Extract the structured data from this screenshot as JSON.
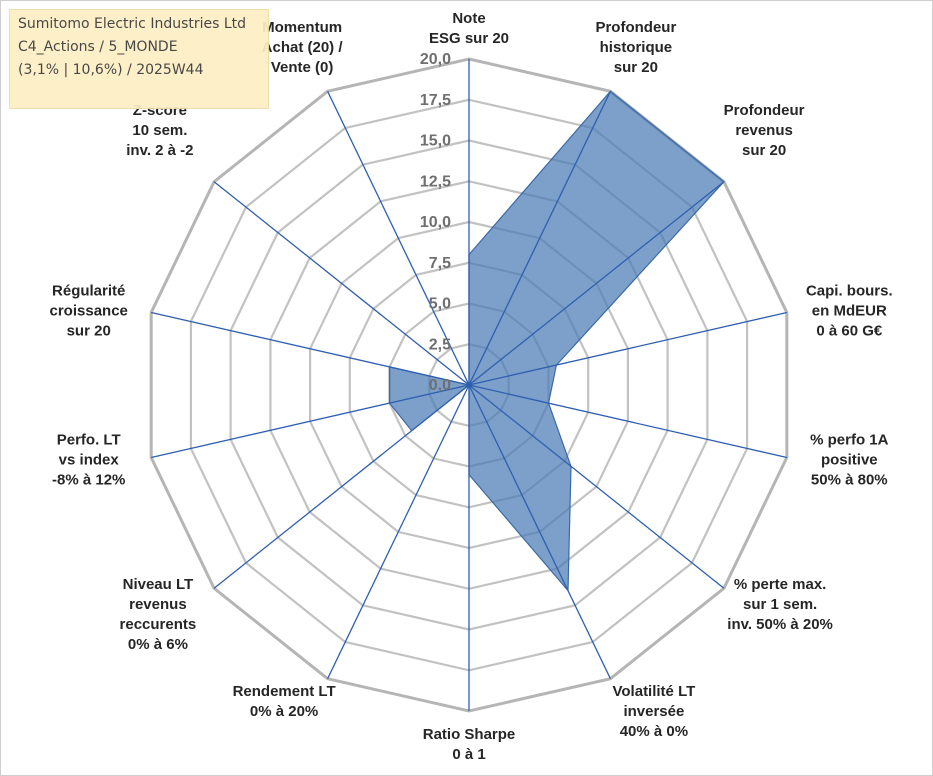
{
  "header": {
    "company": "Sumitomo Electric Industries Ltd",
    "portfolio": "C4_Actions / 5_MONDE",
    "period": "(3,1% | 10,6%) / 2025W44"
  },
  "chart_data": {
    "type": "radar",
    "title": "",
    "rlim": [
      0,
      20
    ],
    "ticks": [
      "0,0",
      "2,5",
      "5,0",
      "7,5",
      "10,0",
      "12,5",
      "15,0",
      "17,5",
      "20,0"
    ],
    "axes": [
      "Note\nESG sur 20",
      "Profondeur\nhistorique\nsur 20",
      "Profondeur\nrevenus\nsur 20",
      "Capi. bours.\nen MdEUR\n0 à 60 G€",
      "% perfo 1A\npositive\n50% à 80%",
      "% perte max.\nsur 1 sem.\ninv. 50% à 20%",
      "Volatilité LT\ninversée\n40% à 0%",
      "Ratio Sharpe\n0 à 1",
      "Rendement LT\n0% à 20%",
      "Niveau LT\nrevenus\nreccurents\n0% à 6%",
      "Perfo. LT\nvs index\n-8% à 12%",
      "Régularité\ncroissance\nsur 20",
      "Z-score\n10 sem.\ninv. 2 à -2",
      "Momentum\nAchat (20) /\nVente (0)"
    ],
    "series": [
      {
        "values": [
          8.0,
          20.0,
          20.0,
          5.5,
          5.0,
          8.0,
          14.0,
          5.5,
          0.0,
          4.5,
          5.0,
          5.0,
          0.0,
          0.0
        ]
      }
    ],
    "colors": {
      "fill": "#4a7bb5",
      "stroke": "#3a6aa5",
      "spoke": "#2f5fb0",
      "grid": "#c2c2c2",
      "outer": "#b5b5b5"
    }
  }
}
